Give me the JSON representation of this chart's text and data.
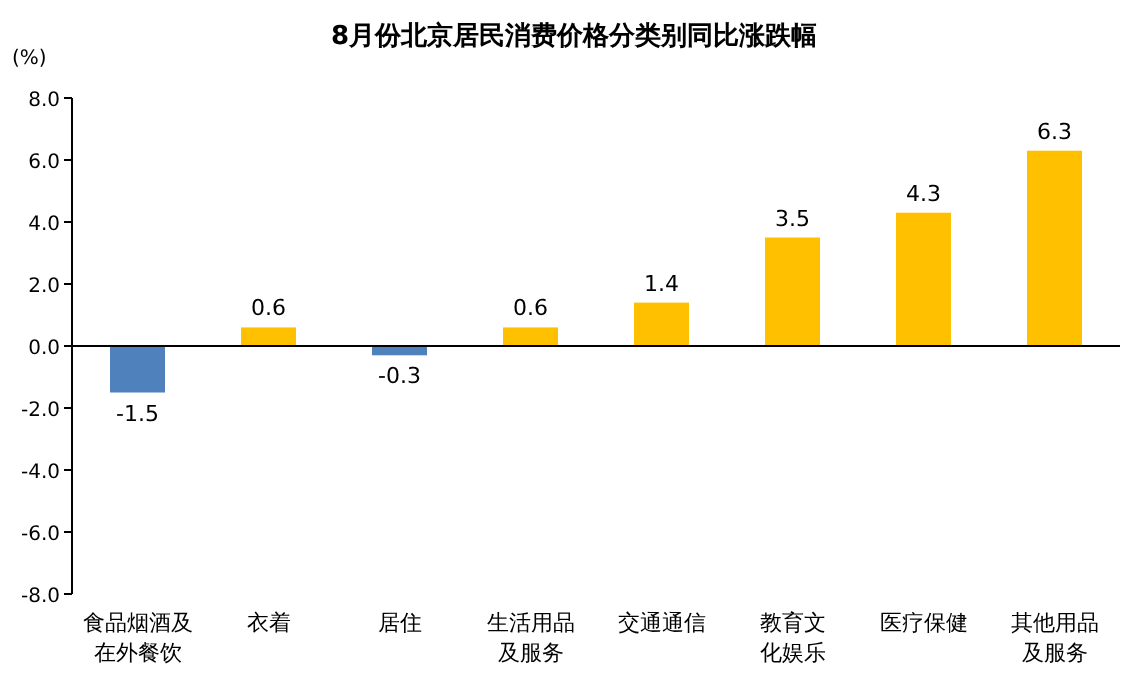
{
  "chart_data": {
    "type": "bar",
    "title": "8月份北京居民消费价格分类别同比涨跌幅",
    "ylabel": "(%)",
    "categories": [
      "食品烟酒及在外餐饮",
      "衣着",
      "居住",
      "生活用品及服务",
      "交通通信",
      "教育文化娱乐",
      "医疗保健",
      "其他用品及服务"
    ],
    "values": [
      -1.5,
      0.6,
      -0.3,
      0.6,
      1.4,
      3.5,
      4.3,
      6.3
    ],
    "colors": [
      "#4f81bd",
      "#ffc000",
      "#4f81bd",
      "#ffc000",
      "#ffc000",
      "#ffc000",
      "#ffc000",
      "#ffc000"
    ],
    "ylim": [
      -8,
      8
    ],
    "yticks": [
      {
        "value": -8,
        "label": "-8.0"
      },
      {
        "value": -6,
        "label": "-6.0"
      },
      {
        "value": -4,
        "label": "-4.0"
      },
      {
        "value": -2,
        "label": "-2.0"
      },
      {
        "value": 0,
        "label": "0.0"
      },
      {
        "value": 2,
        "label": "2.0"
      },
      {
        "value": 4,
        "label": "4.0"
      },
      {
        "value": 6,
        "label": "6.0"
      },
      {
        "value": 8,
        "label": "8.0"
      }
    ],
    "data_labels": true
  }
}
